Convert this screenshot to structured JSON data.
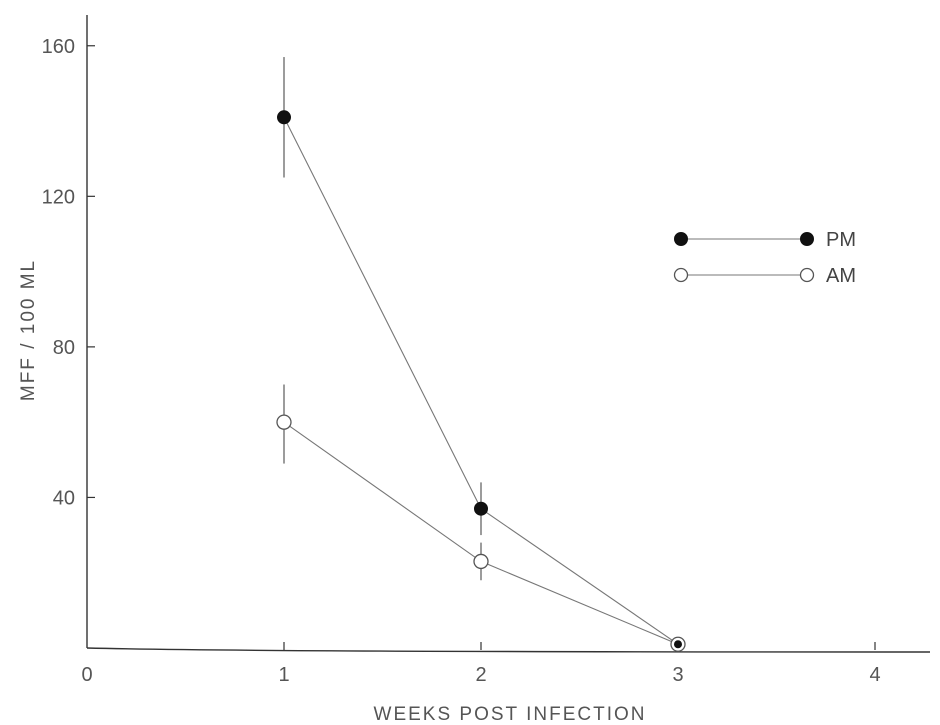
{
  "chart_data": {
    "type": "line",
    "xlabel": "WEEKS POST INFECTION",
    "ylabel": "MFF / 100 ML",
    "xlim": [
      0,
      4.25
    ],
    "ylim": [
      0,
      170
    ],
    "x_ticks": [
      0,
      1,
      2,
      3,
      4
    ],
    "x_tick_labels": [
      "0",
      "1",
      "2",
      "3",
      "4"
    ],
    "y_ticks": [
      40,
      80,
      120,
      160
    ],
    "y_tick_labels": [
      "40",
      "80",
      "120",
      "160"
    ],
    "grid": false,
    "legend_position": "right",
    "series": [
      {
        "name": "PM",
        "marker": "filled-circle",
        "x": [
          1,
          2,
          3
        ],
        "y": [
          141,
          37,
          1
        ],
        "err_low": [
          125,
          30,
          1
        ],
        "err_high": [
          157,
          44,
          1
        ]
      },
      {
        "name": "AM",
        "marker": "open-circle",
        "x": [
          1,
          2,
          3
        ],
        "y": [
          60,
          23,
          1
        ],
        "err_low": [
          49,
          18,
          1
        ],
        "err_high": [
          70,
          28,
          1
        ]
      }
    ]
  }
}
